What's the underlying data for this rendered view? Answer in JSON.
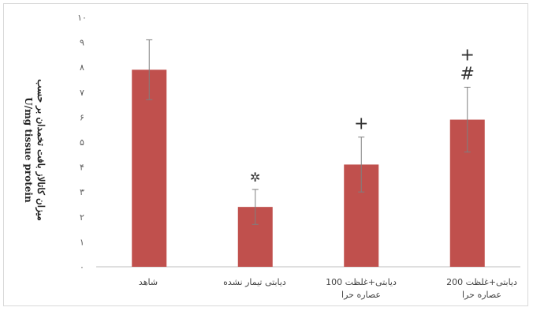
{
  "chart_data": {
    "type": "bar",
    "categories": [
      {
        "line1": "شاهد",
        "line2": ""
      },
      {
        "line1": "دیابتی تیمار نشده",
        "line2": ""
      },
      {
        "line1": "دیابتی+غلظت 100",
        "line2": "عصاره حرا"
      },
      {
        "line1": "دیابتی+غلظت 200",
        "line2": "عصاره حرا"
      }
    ],
    "values": [
      7.9,
      2.4,
      4.1,
      5.9
    ],
    "errors": [
      1.2,
      0.7,
      1.1,
      1.3
    ],
    "annotations": [
      "",
      "✲",
      "+",
      "+\n#"
    ],
    "yticks": [
      "۰",
      "۱",
      "۲",
      "۳",
      "۴",
      "۵",
      "۶",
      "۷",
      "۸",
      "۹",
      "۱۰"
    ],
    "ylim": [
      0,
      10
    ],
    "ylabel_line1": "میزان کاتالاز بافت تخمدان بر حسب",
    "ylabel_line2": "U/mg tissue protein",
    "bar_color": "#c0504d",
    "error_color": "#7f7f7f",
    "grid": false
  }
}
